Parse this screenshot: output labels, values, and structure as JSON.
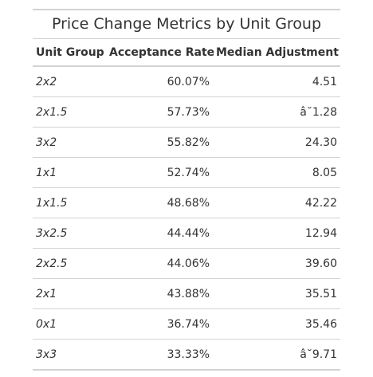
{
  "table": {
    "title": "Price Change Metrics by Unit Group",
    "columns": [
      "Unit Group",
      "Acceptance Rate",
      "Median Adjustment"
    ],
    "rows": [
      {
        "group": "2x2",
        "acceptance_rate": "60.07%",
        "median_adjustment": "4.51"
      },
      {
        "group": "2x1.5",
        "acceptance_rate": "57.73%",
        "median_adjustment": "â˘1.28"
      },
      {
        "group": "3x2",
        "acceptance_rate": "55.82%",
        "median_adjustment": "24.30"
      },
      {
        "group": "1x1",
        "acceptance_rate": "52.74%",
        "median_adjustment": "8.05"
      },
      {
        "group": "1x1.5",
        "acceptance_rate": "48.68%",
        "median_adjustment": "42.22"
      },
      {
        "group": "3x2.5",
        "acceptance_rate": "44.44%",
        "median_adjustment": "12.94"
      },
      {
        "group": "2x2.5",
        "acceptance_rate": "44.06%",
        "median_adjustment": "39.60"
      },
      {
        "group": "2x1",
        "acceptance_rate": "43.88%",
        "median_adjustment": "35.51"
      },
      {
        "group": "0x1",
        "acceptance_rate": "36.74%",
        "median_adjustment": "35.46"
      },
      {
        "group": "3x3",
        "acceptance_rate": "33.33%",
        "median_adjustment": "â˘9.71"
      }
    ]
  },
  "colors": {
    "text": "#333333",
    "rule": "#d3d3d3",
    "background": "#ffffff"
  }
}
